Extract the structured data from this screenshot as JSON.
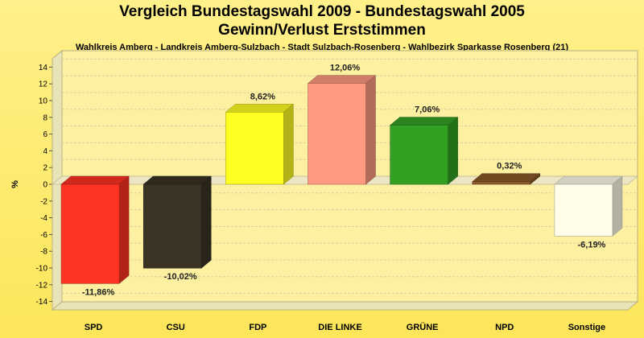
{
  "chart_data": {
    "type": "bar",
    "title": "Vergleich Bundestagswahl 2009 - Bundestagswahl 2005",
    "title2": "Gewinn/Verlust Erststimmen",
    "subtitle": "Wahlkreis Amberg - Landkreis Amberg-Sulzbach - Stadt Sulzbach-Rosenberg - Wahlbezirk Sparkasse Rosenberg (21)",
    "ylabel": "%",
    "xlabel": "",
    "ylim": [
      -15,
      15
    ],
    "yticks": [
      14,
      12,
      10,
      8,
      6,
      4,
      2,
      0,
      -2,
      -4,
      -6,
      -8,
      -10,
      -12,
      -14
    ],
    "grid": true,
    "categories": [
      "SPD",
      "CSU",
      "FDP",
      "DIE LINKE",
      "GRÜNE",
      "NPD",
      "Sonstige"
    ],
    "values": [
      -11.86,
      -10.02,
      8.62,
      12.06,
      7.06,
      0.32,
      -6.19
    ],
    "value_labels": [
      "-11,86%",
      "-10,02%",
      "8,62%",
      "12,06%",
      "7,06%",
      "0,32%",
      "-6,19%"
    ],
    "colors": [
      "#ff3322",
      "#3b3324",
      "#ffff22",
      "#ff9a80",
      "#33a024",
      "#8b5a28",
      "#fffde8"
    ]
  }
}
